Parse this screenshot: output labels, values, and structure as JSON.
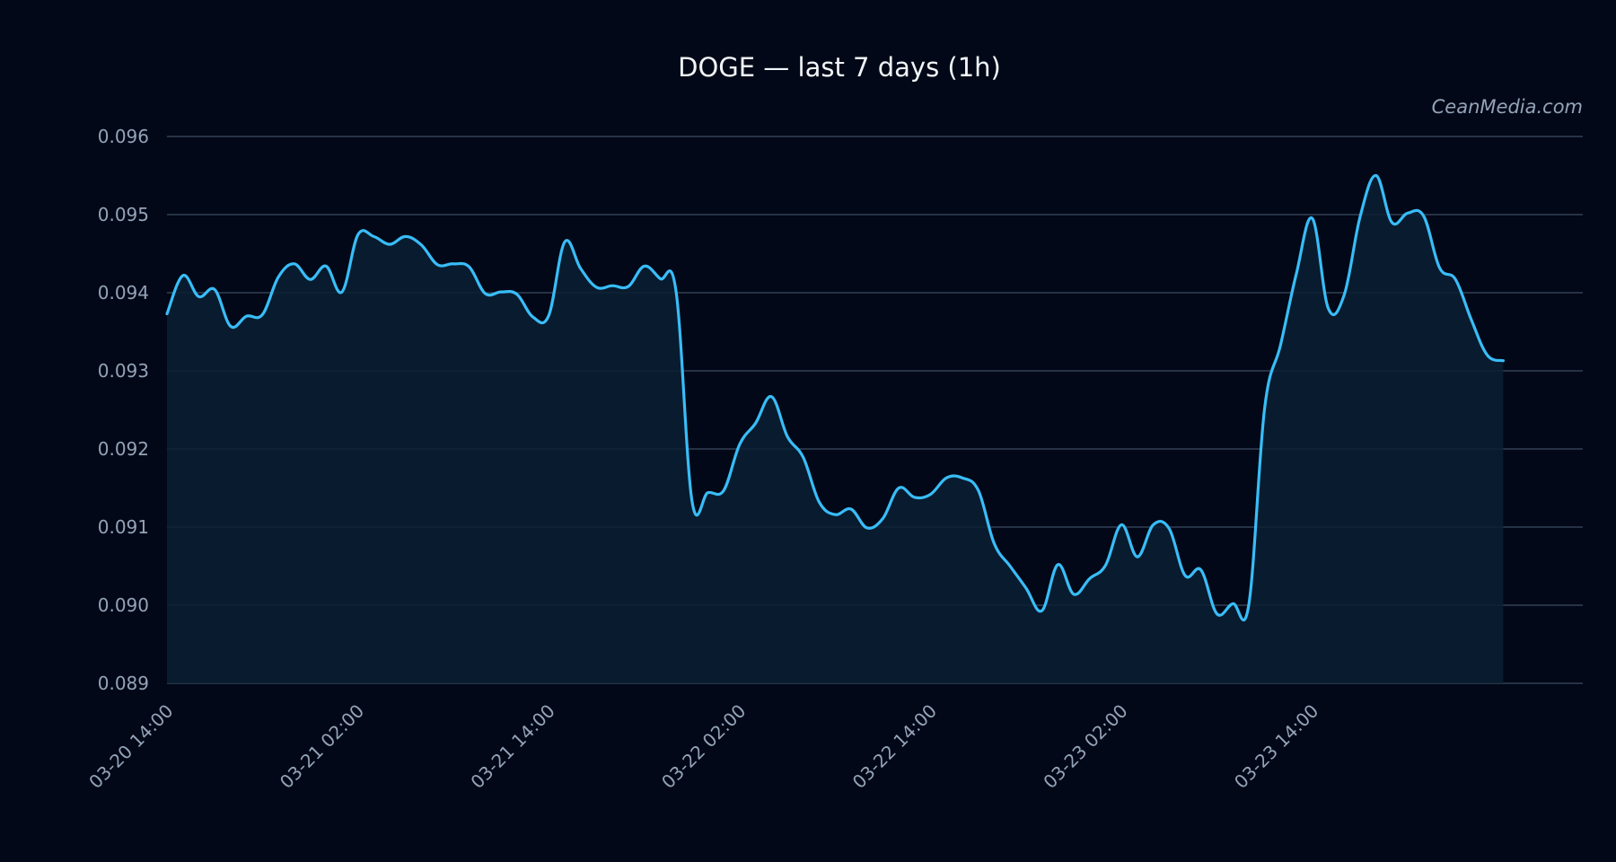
{
  "watermark": "CeanMedia.com",
  "colors": {
    "background": "#020817",
    "line": "#38bdf8",
    "area": "#0b1e33",
    "grid": "#334155",
    "text": "#94a3b8"
  },
  "chart_data": {
    "type": "area",
    "title": "DOGE — last 7 days (1h)",
    "xlabel": "",
    "ylabel": "",
    "grid": true,
    "ylim": [
      0.089,
      0.096
    ],
    "yticks": [
      "0.089",
      "0.090",
      "0.091",
      "0.092",
      "0.093",
      "0.094",
      "0.095",
      "0.096"
    ],
    "xlim": [
      "03-20 14:00",
      "03-24 07:00"
    ],
    "xticks": [
      "03-20 14:00",
      "03-21 02:00",
      "03-21 14:00",
      "03-22 02:00",
      "03-22 14:00",
      "03-23 02:00",
      "03-23 14:00"
    ],
    "series": [
      {
        "values": [
          [
            "03-20 14:00",
            0.09373
          ],
          [
            "03-20 15:00",
            0.09422
          ],
          [
            "03-20 16:00",
            0.09395
          ],
          [
            "03-20 17:00",
            0.09404
          ],
          [
            "03-20 18:00",
            0.09357
          ],
          [
            "03-20 19:00",
            0.0937
          ],
          [
            "03-20 20:00",
            0.09372
          ],
          [
            "03-20 21:00",
            0.0942
          ],
          [
            "03-20 22:00",
            0.09437
          ],
          [
            "03-20 23:00",
            0.09417
          ],
          [
            "03-21 00:00",
            0.09434
          ],
          [
            "03-21 01:00",
            0.09401
          ],
          [
            "03-21 02:00",
            0.09474
          ],
          [
            "03-21 03:00",
            0.09472
          ],
          [
            "03-21 04:00",
            0.09462
          ],
          [
            "03-21 05:00",
            0.09472
          ],
          [
            "03-21 06:00",
            0.09461
          ],
          [
            "03-21 07:00",
            0.09436
          ],
          [
            "03-21 08:00",
            0.09437
          ],
          [
            "03-21 09:00",
            0.09433
          ],
          [
            "03-21 10:00",
            0.09399
          ],
          [
            "03-21 11:00",
            0.09401
          ],
          [
            "03-21 12:00",
            0.09398
          ],
          [
            "03-21 13:00",
            0.09369
          ],
          [
            "03-21 14:00",
            0.09371
          ],
          [
            "03-21 15:00",
            0.09465
          ],
          [
            "03-21 16:00",
            0.09431
          ],
          [
            "03-21 17:00",
            0.09407
          ],
          [
            "03-21 18:00",
            0.09409
          ],
          [
            "03-21 19:00",
            0.09408
          ],
          [
            "03-21 20:00",
            0.09434
          ],
          [
            "03-21 21:00",
            0.09418
          ],
          [
            "03-21 22:00",
            0.09402
          ],
          [
            "03-21 23:00",
            0.09134
          ],
          [
            "03-22 00:00",
            0.09144
          ],
          [
            "03-22 01:00",
            0.09147
          ],
          [
            "03-22 02:00",
            0.09206
          ],
          [
            "03-22 03:00",
            0.09233
          ],
          [
            "03-22 04:00",
            0.09267
          ],
          [
            "03-22 05:00",
            0.09216
          ],
          [
            "03-22 06:00",
            0.09189
          ],
          [
            "03-22 07:00",
            0.09132
          ],
          [
            "03-22 08:00",
            0.09116
          ],
          [
            "03-22 09:00",
            0.09123
          ],
          [
            "03-22 10:00",
            0.09099
          ],
          [
            "03-22 11:00",
            0.09111
          ],
          [
            "03-22 12:00",
            0.0915
          ],
          [
            "03-22 13:00",
            0.09138
          ],
          [
            "03-22 14:00",
            0.09142
          ],
          [
            "03-22 15:00",
            0.09163
          ],
          [
            "03-22 16:00",
            0.09163
          ],
          [
            "03-22 17:00",
            0.09147
          ],
          [
            "03-22 18:00",
            0.09079
          ],
          [
            "03-22 19:00",
            0.0905
          ],
          [
            "03-22 20:00",
            0.09022
          ],
          [
            "03-22 21:00",
            0.08993
          ],
          [
            "03-22 22:00",
            0.09052
          ],
          [
            "03-22 23:00",
            0.09014
          ],
          [
            "03-23 00:00",
            0.09034
          ],
          [
            "03-23 01:00",
            0.09051
          ],
          [
            "03-23 02:00",
            0.09103
          ],
          [
            "03-23 03:00",
            0.09062
          ],
          [
            "03-23 04:00",
            0.09103
          ],
          [
            "03-23 05:00",
            0.09098
          ],
          [
            "03-23 06:00",
            0.09038
          ],
          [
            "03-23 07:00",
            0.09045
          ],
          [
            "03-23 08:00",
            0.08989
          ],
          [
            "03-23 09:00",
            0.09002
          ],
          [
            "03-23 10:00",
            0.09
          ],
          [
            "03-23 11:00",
            0.09252
          ],
          [
            "03-23 12:00",
            0.09333
          ],
          [
            "03-23 13:00",
            0.09425
          ],
          [
            "03-23 14:00",
            0.09495
          ],
          [
            "03-23 15:00",
            0.0938
          ],
          [
            "03-23 16:00",
            0.09397
          ],
          [
            "03-23 17:00",
            0.09497
          ],
          [
            "03-23 18:00",
            0.0955
          ],
          [
            "03-23 19:00",
            0.0949
          ],
          [
            "03-23 20:00",
            0.09502
          ],
          [
            "03-23 21:00",
            0.09498
          ],
          [
            "03-23 22:00",
            0.09432
          ],
          [
            "03-23 23:00",
            0.09417
          ],
          [
            "03-24 00:00",
            0.09365
          ],
          [
            "03-24 01:00",
            0.0932
          ],
          [
            "03-24 02:00",
            0.09313
          ]
        ]
      }
    ]
  }
}
